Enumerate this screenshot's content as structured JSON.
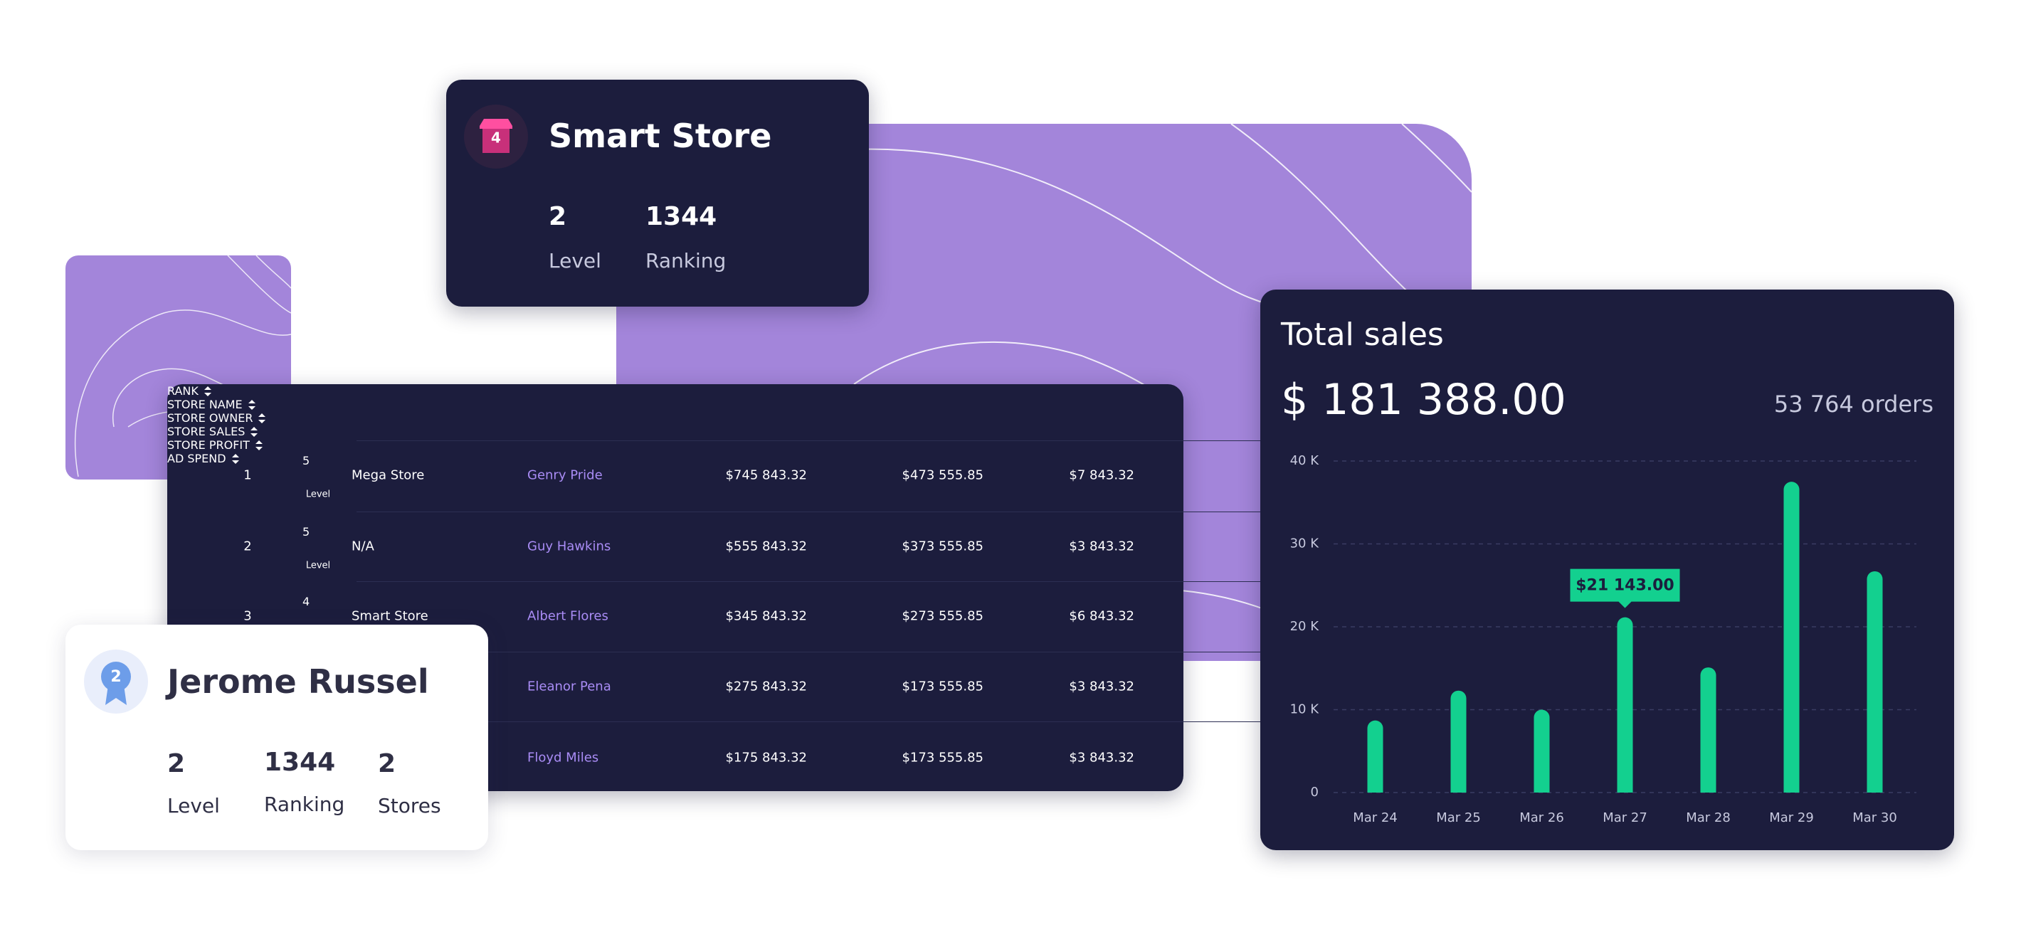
{
  "smart_store": {
    "icon": "4",
    "title": "Smart Store",
    "level": "2",
    "level_label": "Level",
    "ranking": "1344",
    "ranking_label": "Ranking"
  },
  "table": {
    "headers": [
      "RANK",
      "STORE NAME",
      "STORE OWNER",
      "STORE SALES",
      "STORE PROFIT",
      "AD SPEND"
    ],
    "rows": [
      {
        "rank": "1",
        "level": "5",
        "level_label": "Level",
        "icon_color": "#f26b1d",
        "store": "Mega Store",
        "owner": "Genry  Pride",
        "sales": "$745 843.32",
        "profit": "$473 555.85",
        "ad_spend": "$7 843.32"
      },
      {
        "rank": "2",
        "level": "5",
        "level_label": "Level",
        "icon_color": "#f26b1d",
        "store": "N/A",
        "owner": "Guy Hawkins",
        "sales": "$555 843.32",
        "profit": "$373 555.85",
        "ad_spend": "$3 843.32"
      },
      {
        "rank": "3",
        "level": "4",
        "icon_color": "#e8388a",
        "store": "Smart Store",
        "owner": "Albert Flores",
        "sales": "$345 843.32",
        "profit": "$273 555.85",
        "ad_spend": "$6 843.32"
      },
      {
        "owner": "Eleanor Pena",
        "sales": "$275 843.32",
        "profit": "$173 555.85",
        "ad_spend": "$3 843.32"
      },
      {
        "owner": "Floyd Miles",
        "sales": "$175 843.32",
        "profit": "$173 555.85",
        "ad_spend": "$3 843.32"
      }
    ]
  },
  "profile": {
    "badge": "2",
    "name": "Jerome Russel",
    "level": "2",
    "level_label": "Level",
    "ranking": "1344",
    "ranking_label": "Ranking",
    "stores": "2",
    "stores_label": "Stores"
  },
  "chart_data": {
    "type": "bar",
    "title": "Total sales",
    "total": "$ 181 388.00",
    "orders": "53 764 orders",
    "categories": [
      "Mar 24",
      "Mar 25",
      "Mar 26",
      "Mar 27",
      "Mar 28",
      "Mar 29",
      "Mar 30"
    ],
    "values": [
      8700,
      12300,
      10000,
      21143,
      15100,
      37500,
      26700
    ],
    "value_labels": [
      null,
      null,
      null,
      "$21 143.00",
      null,
      null,
      null
    ],
    "color": "#13d08f",
    "ylim": [
      0,
      40000
    ],
    "yticks": [
      0,
      {
        "value": 10000,
        "label": "10 K"
      },
      {
        "value": 20000,
        "label": "20 K"
      },
      {
        "value": 30000,
        "label": "30 K"
      },
      {
        "value": 40000,
        "label": "40 K"
      }
    ],
    "grid": true
  }
}
